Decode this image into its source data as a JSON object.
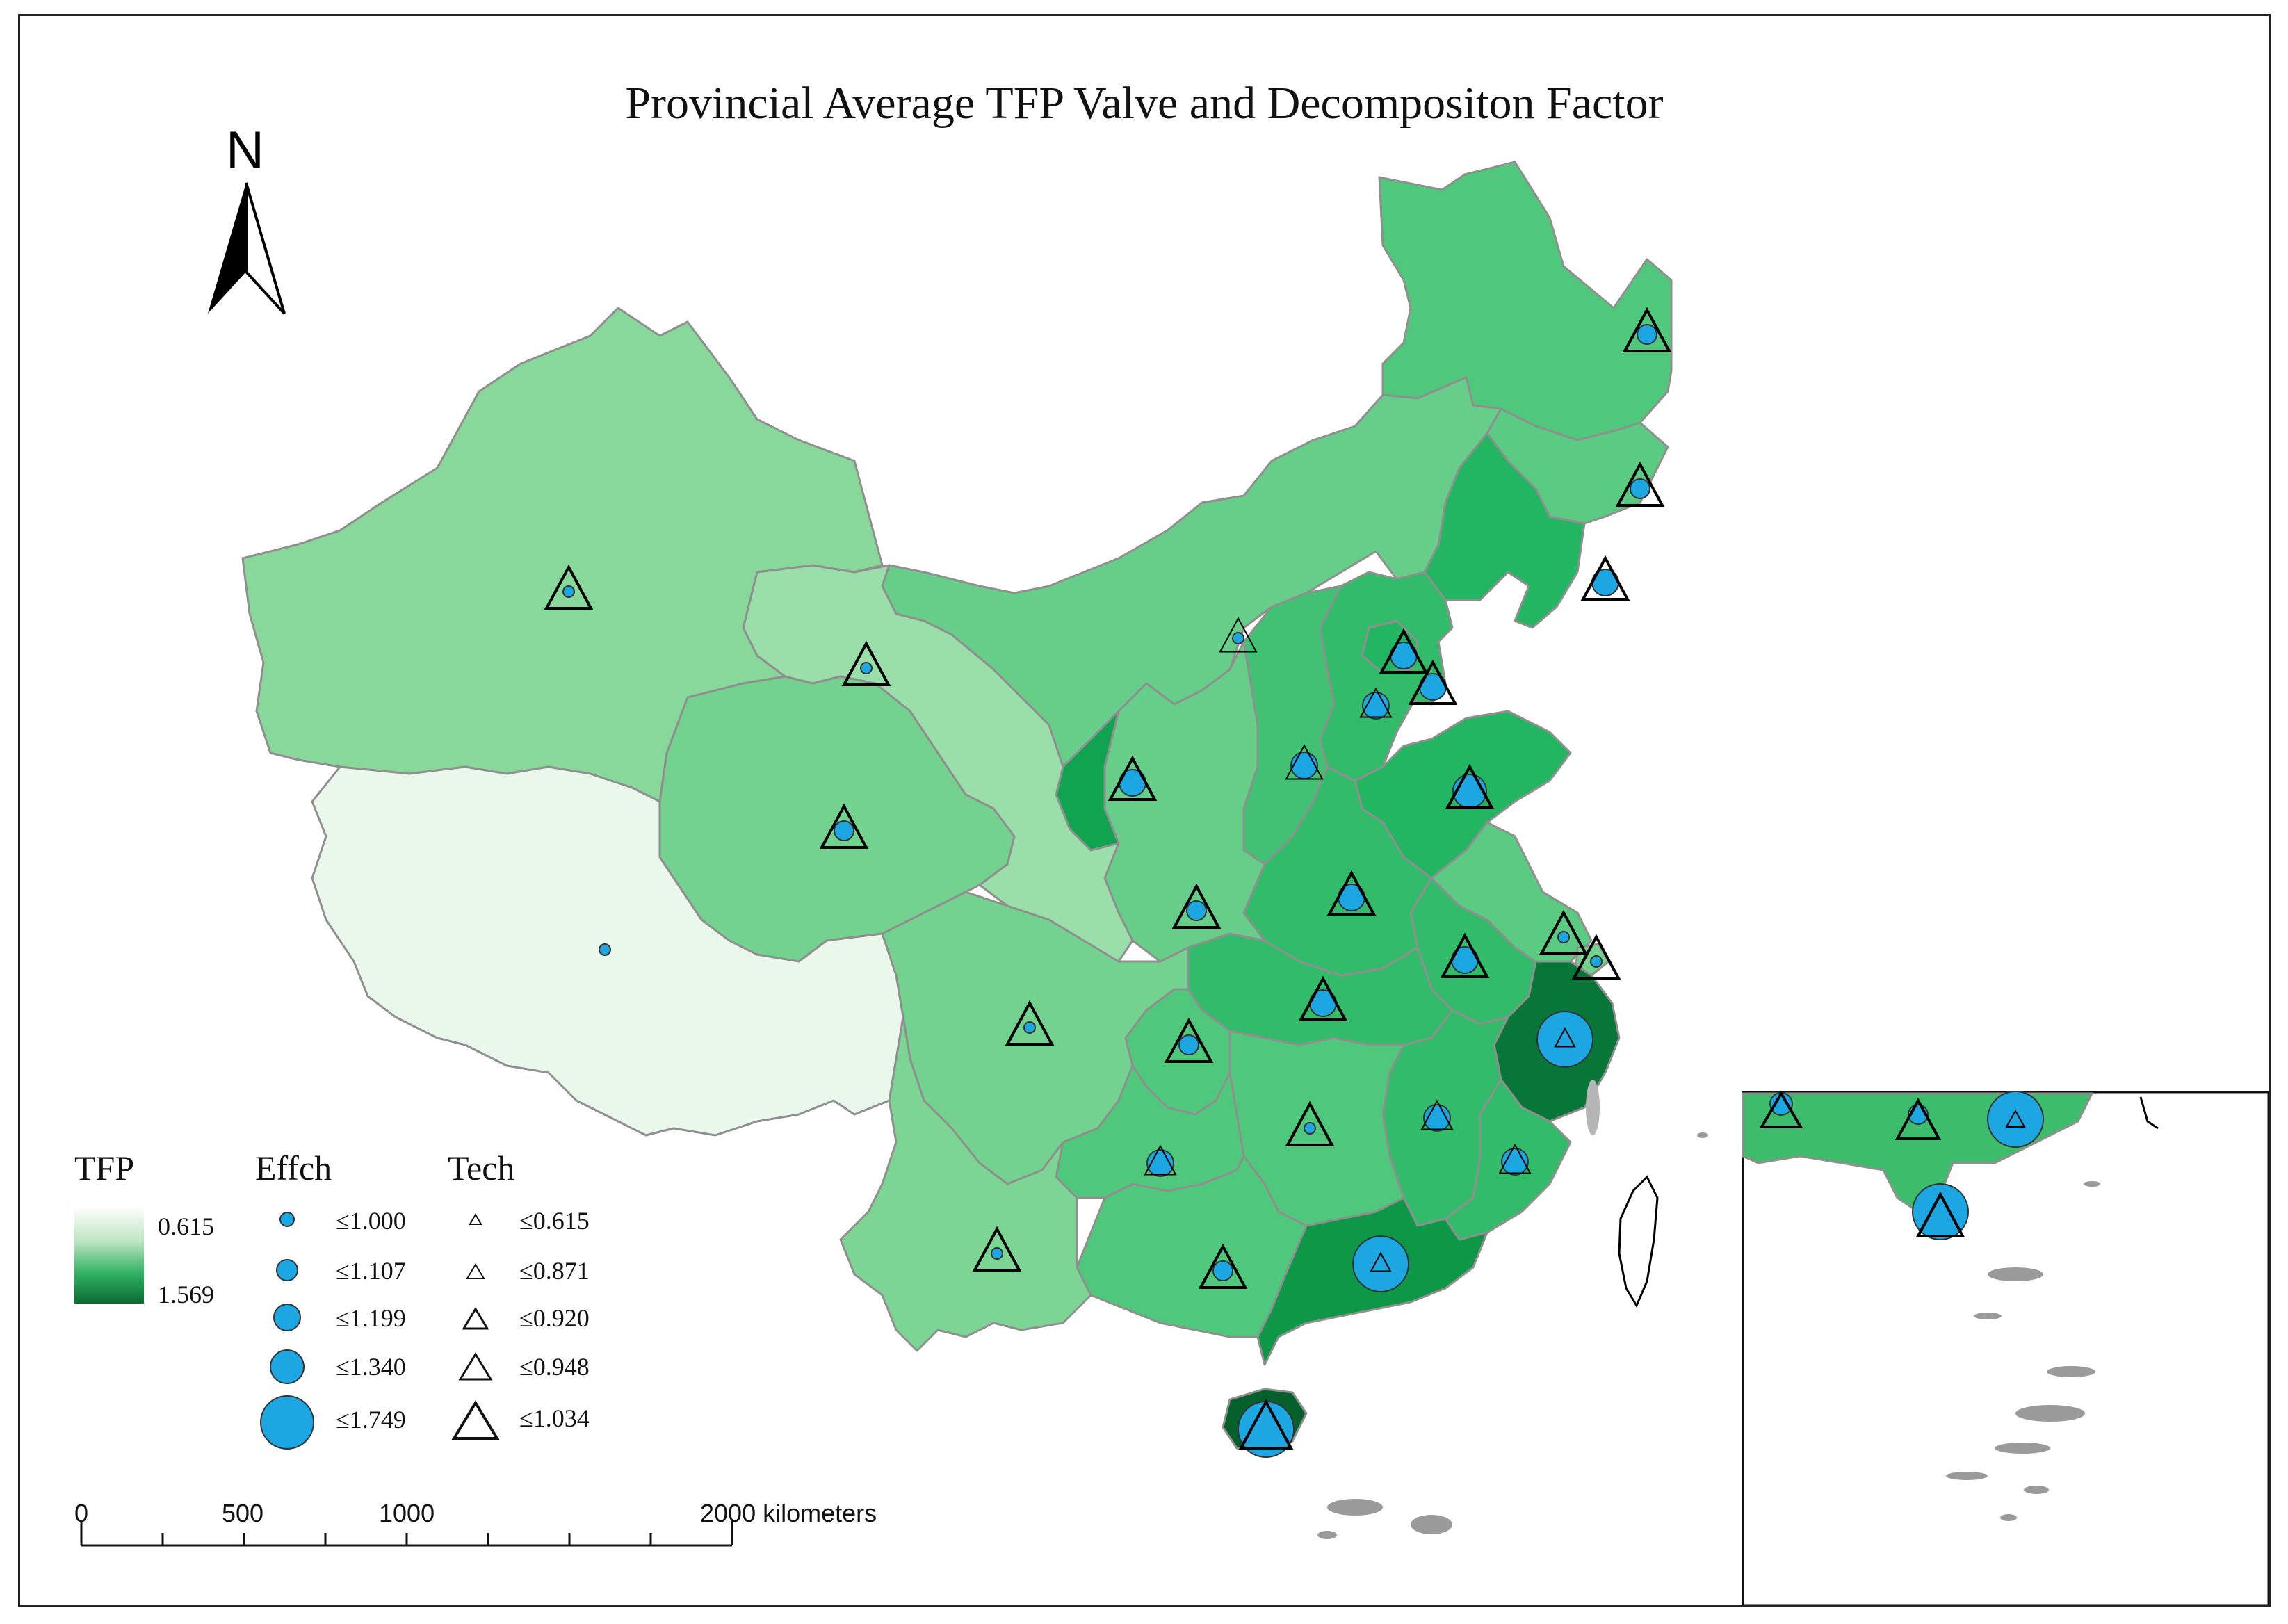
{
  "title": "Provincial Average TFP Valve and Decompositon Factor",
  "north_label": "N",
  "colors": {
    "tfp_low": "#f1f9f1",
    "tfp_high": "#0a6a32",
    "effch_fill": "#1ca7e3",
    "border": "#8f8f8f"
  },
  "legend": {
    "tfp": {
      "title": "TFP",
      "min_label": "0.615",
      "max_label": "1.569"
    },
    "effch": {
      "title": "Effch",
      "classes": [
        "≤1.000",
        "≤1.107",
        "≤1.199",
        "≤1.340",
        "≤1.749"
      ]
    },
    "tech": {
      "title": "Tech",
      "classes": [
        "≤0.615",
        "≤0.871",
        "≤0.920",
        "≤0.948",
        "≤1.034"
      ]
    }
  },
  "scale_bar": {
    "labels": [
      "0",
      "500",
      "1000",
      "2000 kilometers"
    ]
  },
  "provinces": [
    {
      "name": "Heilongjiang",
      "tfp_level": 0.55,
      "effch_class": 2,
      "tech_class": 4
    },
    {
      "name": "Jilin",
      "tfp_level": 0.5,
      "effch_class": 2,
      "tech_class": 4
    },
    {
      "name": "Liaoning",
      "tfp_level": 0.7,
      "effch_class": 3,
      "tech_class": 4
    },
    {
      "name": "Inner Mongolia",
      "tfp_level": 0.45,
      "effch_class": 1,
      "tech_class": 3
    },
    {
      "name": "Beijing",
      "tfp_level": 0.7,
      "effch_class": 3,
      "tech_class": 4
    },
    {
      "name": "Tianjin",
      "tfp_level": 0.7,
      "effch_class": 3,
      "tech_class": 4
    },
    {
      "name": "Hebei",
      "tfp_level": 0.65,
      "effch_class": 3,
      "tech_class": 2
    },
    {
      "name": "Shanxi",
      "tfp_level": 0.6,
      "effch_class": 3,
      "tech_class": 3
    },
    {
      "name": "Shandong",
      "tfp_level": 0.7,
      "effch_class": 4,
      "tech_class": 4
    },
    {
      "name": "Henan",
      "tfp_level": 0.65,
      "effch_class": 3,
      "tech_class": 4
    },
    {
      "name": "Jiangsu",
      "tfp_level": 0.5,
      "effch_class": 1,
      "tech_class": 4
    },
    {
      "name": "Shanghai",
      "tfp_level": 0.4,
      "effch_class": 1,
      "tech_class": 4
    },
    {
      "name": "Anhui",
      "tfp_level": 0.65,
      "effch_class": 3,
      "tech_class": 4
    },
    {
      "name": "Zhejiang",
      "tfp_level": 0.95,
      "effch_class": 5,
      "tech_class": 1
    },
    {
      "name": "Hubei",
      "tfp_level": 0.65,
      "effch_class": 3,
      "tech_class": 4
    },
    {
      "name": "Jiangxi",
      "tfp_level": 0.65,
      "effch_class": 3,
      "tech_class": 2
    },
    {
      "name": "Fujian",
      "tfp_level": 0.65,
      "effch_class": 3,
      "tech_class": 2
    },
    {
      "name": "Hunan",
      "tfp_level": 0.55,
      "effch_class": 1,
      "tech_class": 4
    },
    {
      "name": "Guangdong",
      "tfp_level": 0.85,
      "effch_class": 5,
      "tech_class": 1
    },
    {
      "name": "Guangxi",
      "tfp_level": 0.55,
      "effch_class": 2,
      "tech_class": 4
    },
    {
      "name": "Hainan",
      "tfp_level": 1.0,
      "effch_class": 5,
      "tech_class": 5
    },
    {
      "name": "Chongqing",
      "tfp_level": 0.55,
      "effch_class": 2,
      "tech_class": 4
    },
    {
      "name": "Sichuan",
      "tfp_level": 0.4,
      "effch_class": 1,
      "tech_class": 4
    },
    {
      "name": "Guizhou",
      "tfp_level": 0.55,
      "effch_class": 3,
      "tech_class": 2
    },
    {
      "name": "Yunnan",
      "tfp_level": 0.35,
      "effch_class": 1,
      "tech_class": 4
    },
    {
      "name": "Shaanxi",
      "tfp_level": 0.45,
      "effch_class": 2,
      "tech_class": 4
    },
    {
      "name": "Gansu",
      "tfp_level": 0.25,
      "effch_class": 1,
      "tech_class": 4
    },
    {
      "name": "Qinghai",
      "tfp_level": 0.4,
      "effch_class": 2,
      "tech_class": 4
    },
    {
      "name": "Ningxia",
      "tfp_level": 0.8,
      "effch_class": 3,
      "tech_class": 4
    },
    {
      "name": "Xinjiang",
      "tfp_level": 0.3,
      "effch_class": 1,
      "tech_class": 4
    },
    {
      "name": "Tibet",
      "tfp_level": 0.02,
      "effch_class": 1,
      "tech_class": 0
    }
  ]
}
